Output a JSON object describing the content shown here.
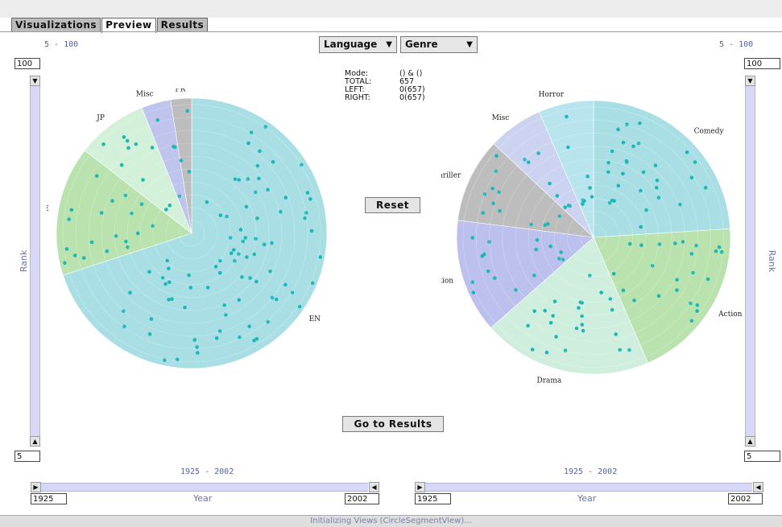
{
  "tabs": [
    {
      "label": "Visualizations"
    },
    {
      "label": "Preview"
    },
    {
      "label": "Results"
    }
  ],
  "controls": {
    "left_dimension": "Language",
    "right_dimension": "Genre"
  },
  "rank": {
    "left": {
      "range": "5 - 100",
      "max": "100",
      "min": "5",
      "label": "Rank"
    },
    "right": {
      "range": "5 - 100",
      "max": "100",
      "min": "5",
      "label": "Rank"
    }
  },
  "year": {
    "left": {
      "range": "1925 - 2002",
      "from": "1925",
      "to": "2002",
      "label": "Year"
    },
    "right": {
      "range": "1925 - 2002",
      "from": "1925",
      "to": "2002",
      "label": "Year"
    }
  },
  "info": {
    "mode_label": "Mode:",
    "mode_value": "() & ()",
    "total_label": "TOTAL:",
    "total_value": "657",
    "left_label": "LEFT:",
    "left_value": "0(657)",
    "right_label": "RIGHT:",
    "right_value": "0(657)"
  },
  "buttons": {
    "reset": "Reset",
    "results": "Go to Results"
  },
  "status": "Initializing Views (CircleSegmentView)...",
  "chart_data": [
    {
      "type": "pie",
      "categories": [
        "EN",
        "DE",
        "JP",
        "Misc",
        "FR"
      ],
      "values": [
        70,
        15.5,
        8.5,
        3.5,
        2.5
      ],
      "colors": {
        "EN": "#a9dfe4",
        "DE": "#b9e2ae",
        "JP": "#d3f0d9",
        "Misc": "#bfc4ec",
        "FR": "#bdbdbd",
        "points": "#1cb7b7"
      }
    },
    {
      "type": "pie",
      "categories": [
        "Comedy",
        "Action",
        "Drama",
        "Science Fiction",
        "Thriller",
        "Misc",
        "Horror"
      ],
      "values": [
        24,
        19.5,
        20,
        13.5,
        10,
        6.5,
        6.5
      ],
      "colors": {
        "Comedy": "#a9dfe4",
        "Action": "#b9e2ae",
        "Drama": "#cfeedd",
        "Science Fiction": "#bcc0ec",
        "Thriller": "#bdbdbd",
        "Misc": "#cbd3f0",
        "Horror": "#b8e4ee",
        "points": "#1cb7b7"
      }
    }
  ]
}
